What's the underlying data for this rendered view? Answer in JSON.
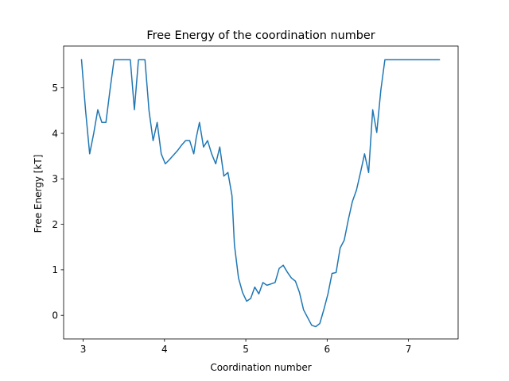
{
  "chart_data": {
    "type": "line",
    "title": "Free Energy of the coordination number",
    "xlabel": "Coordination number",
    "ylabel": "Free Energy [kT]",
    "xlim": [
      2.76,
      7.61
    ],
    "ylim": [
      -0.52,
      5.92
    ],
    "xticks": [
      3,
      4,
      5,
      6,
      7
    ],
    "yticks": [
      0,
      1,
      2,
      3,
      4,
      5
    ],
    "grid": false,
    "series": [
      {
        "color": "#1f77b4",
        "x": [
          2.98,
          3.03,
          3.08,
          3.13,
          3.18,
          3.23,
          3.28,
          3.33,
          3.38,
          3.43,
          3.48,
          3.53,
          3.58,
          3.63,
          3.68,
          3.73,
          3.76,
          3.81,
          3.86,
          3.91,
          3.96,
          4.01,
          4.06,
          4.11,
          4.16,
          4.21,
          4.26,
          4.31,
          4.36,
          4.39,
          4.43,
          4.48,
          4.53,
          4.58,
          4.63,
          4.68,
          4.73,
          4.78,
          4.83,
          4.86,
          4.91,
          4.96,
          5.01,
          5.06,
          5.11,
          5.16,
          5.21,
          5.26,
          5.31,
          5.36,
          5.41,
          5.46,
          5.51,
          5.56,
          5.61,
          5.66,
          5.71,
          5.76,
          5.81,
          5.86,
          5.91,
          5.96,
          6.01,
          6.06,
          6.11,
          6.16,
          6.21,
          6.26,
          6.31,
          6.36,
          6.41,
          6.46,
          6.51,
          6.56,
          6.61,
          6.66,
          6.71,
          6.76,
          6.81,
          6.86,
          6.91,
          6.96,
          7.01,
          7.06,
          7.11,
          7.16,
          7.21,
          7.26,
          7.31,
          7.38
        ],
        "y": [
          5.62,
          4.5,
          3.55,
          4.0,
          4.52,
          4.24,
          4.24,
          4.95,
          5.62,
          5.62,
          5.62,
          5.62,
          5.62,
          4.52,
          5.62,
          5.62,
          5.62,
          4.5,
          3.84,
          4.24,
          3.55,
          3.33,
          3.42,
          3.52,
          3.62,
          3.74,
          3.84,
          3.84,
          3.55,
          3.9,
          4.24,
          3.7,
          3.84,
          3.55,
          3.33,
          3.7,
          3.06,
          3.14,
          2.63,
          1.55,
          0.82,
          0.5,
          0.31,
          0.37,
          0.62,
          0.47,
          0.72,
          0.66,
          0.69,
          0.72,
          1.03,
          1.1,
          0.95,
          0.82,
          0.75,
          0.5,
          0.12,
          -0.05,
          -0.22,
          -0.25,
          -0.18,
          0.13,
          0.47,
          0.92,
          0.94,
          1.48,
          1.65,
          2.1,
          2.5,
          2.75,
          3.14,
          3.55,
          3.14,
          4.52,
          4.02,
          4.95,
          5.62,
          5.62,
          5.62,
          5.62,
          5.62,
          5.62,
          5.62,
          5.62,
          5.62,
          5.62,
          5.62,
          5.62,
          5.62,
          5.62
        ]
      }
    ]
  }
}
